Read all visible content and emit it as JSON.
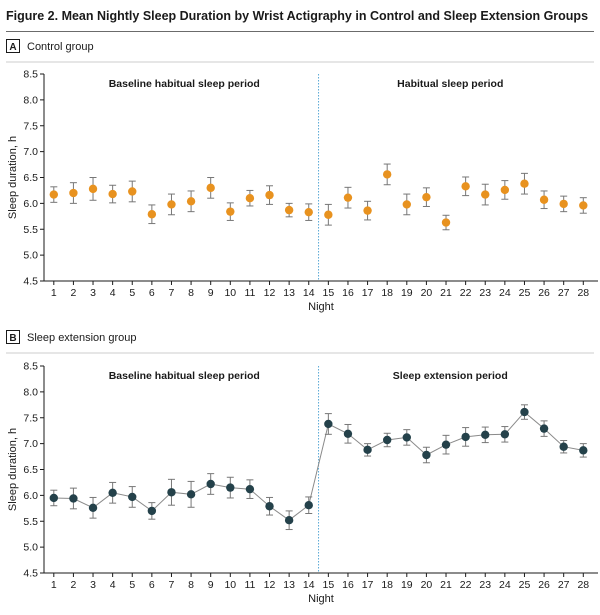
{
  "figure_title": "Figure 2. Mean Nightly Sleep Duration by Wrist Actigraphy in Control and Sleep Extension Groups",
  "colors": {
    "control_marker": "#E8921F",
    "extension_marker": "#24414A",
    "divider": "#5AA9D6",
    "line": "#8a8a8a",
    "error_bar": "#777777"
  },
  "chart_data": [
    {
      "type": "line",
      "panel_letter": "A",
      "panel_title": "Control group",
      "xlabel": "Night",
      "ylabel": "Sleep duration, h",
      "ylim": [
        4.5,
        8.5
      ],
      "yticks": [
        "4.5",
        "5.0",
        "5.5",
        "6.0",
        "6.5",
        "7.0",
        "7.5",
        "8.0",
        "8.5"
      ],
      "divider_after_night": 14.5,
      "period_labels": [
        "Baseline habitual sleep period",
        "Habitual sleep period"
      ],
      "connect_line": false,
      "x": [
        1,
        2,
        3,
        4,
        5,
        6,
        7,
        8,
        9,
        10,
        11,
        12,
        13,
        14,
        15,
        16,
        17,
        18,
        19,
        20,
        21,
        22,
        23,
        24,
        25,
        26,
        27,
        28
      ],
      "xtick_labels": [
        "1",
        "2",
        "3",
        "4",
        "5",
        "6",
        "7",
        "8",
        "9",
        "10",
        "11",
        "12",
        "13",
        "14",
        "15",
        "16",
        "17",
        "18",
        "19",
        "20",
        "21",
        "22",
        "23",
        "24",
        "25",
        "26",
        "27",
        "28"
      ],
      "values": [
        6.17,
        6.2,
        6.28,
        6.18,
        6.23,
        5.79,
        5.98,
        6.04,
        6.3,
        5.84,
        6.1,
        6.16,
        5.87,
        5.83,
        5.78,
        6.11,
        5.86,
        6.56,
        5.98,
        6.12,
        5.63,
        6.33,
        6.17,
        6.26,
        6.38,
        6.07,
        5.99,
        5.96
      ],
      "errors": [
        0.15,
        0.2,
        0.22,
        0.17,
        0.2,
        0.18,
        0.2,
        0.2,
        0.2,
        0.17,
        0.15,
        0.18,
        0.13,
        0.16,
        0.2,
        0.2,
        0.18,
        0.2,
        0.2,
        0.18,
        0.14,
        0.18,
        0.2,
        0.18,
        0.2,
        0.17,
        0.15,
        0.15
      ]
    },
    {
      "type": "line",
      "panel_letter": "B",
      "panel_title": "Sleep extension group",
      "xlabel": "Night",
      "ylabel": "Sleep duration, h",
      "ylim": [
        4.5,
        8.5
      ],
      "yticks": [
        "4.5",
        "5.0",
        "5.5",
        "6.0",
        "6.5",
        "7.0",
        "7.5",
        "8.0",
        "8.5"
      ],
      "divider_after_night": 14.5,
      "period_labels": [
        "Baseline habitual sleep period",
        "Sleep extension period"
      ],
      "connect_line": true,
      "x": [
        1,
        2,
        3,
        4,
        5,
        6,
        7,
        8,
        9,
        10,
        11,
        12,
        13,
        14,
        15,
        16,
        17,
        18,
        19,
        20,
        21,
        22,
        23,
        24,
        25,
        26,
        27,
        28
      ],
      "xtick_labels": [
        "1",
        "2",
        "3",
        "4",
        "5",
        "6",
        "7",
        "8",
        "9",
        "10",
        "11",
        "12",
        "13",
        "14",
        "15",
        "16",
        "17",
        "18",
        "19",
        "20",
        "21",
        "22",
        "23",
        "24",
        "25",
        "26",
        "27",
        "28"
      ],
      "values": [
        5.95,
        5.94,
        5.76,
        6.05,
        5.97,
        5.7,
        6.06,
        6.02,
        6.22,
        6.15,
        6.12,
        5.79,
        5.52,
        5.81,
        7.38,
        7.19,
        6.88,
        7.07,
        7.12,
        6.78,
        6.98,
        7.13,
        7.17,
        7.18,
        7.61,
        7.29,
        6.94,
        6.87
      ],
      "errors": [
        0.15,
        0.2,
        0.2,
        0.2,
        0.2,
        0.16,
        0.25,
        0.25,
        0.2,
        0.2,
        0.18,
        0.17,
        0.18,
        0.16,
        0.2,
        0.18,
        0.12,
        0.13,
        0.15,
        0.15,
        0.18,
        0.18,
        0.15,
        0.15,
        0.14,
        0.15,
        0.12,
        0.13
      ]
    }
  ]
}
